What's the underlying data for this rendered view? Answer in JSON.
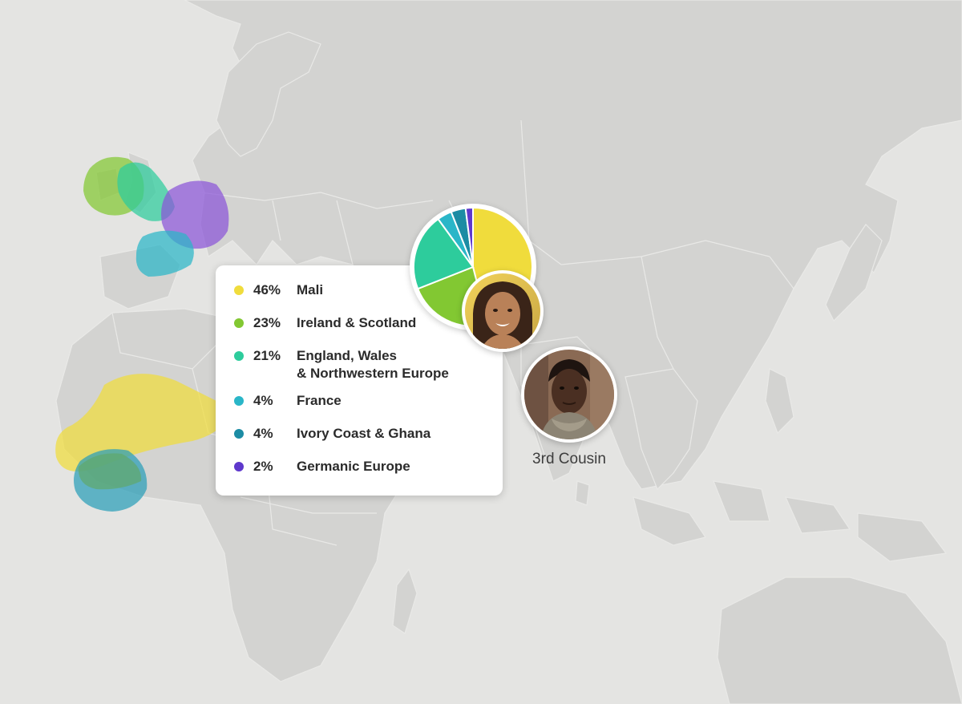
{
  "ethnicity_breakdown": [
    {
      "percent": "46%",
      "region": "Mali",
      "value": 46,
      "color": "#f0dc3c"
    },
    {
      "percent": "23%",
      "region": "Ireland & Scotland",
      "value": 23,
      "color": "#82c832"
    },
    {
      "percent": "21%",
      "region": "England, Wales\n& Northwestern Europe",
      "value": 21,
      "color": "#2dcc9c"
    },
    {
      "percent": "4%",
      "region": "France",
      "value": 4,
      "color": "#2ab6c8"
    },
    {
      "percent": "4%",
      "region": "Ivory Coast & Ghana",
      "value": 4,
      "color": "#1c8ca4"
    },
    {
      "percent": "2%",
      "region": "Germanic Europe",
      "value": 2,
      "color": "#5e38cc"
    }
  ],
  "match": {
    "relationship": "3rd Cousin"
  },
  "colors": {
    "map_background": "#e4e4e2",
    "land": "#d3d3d1",
    "card": "#ffffff"
  }
}
